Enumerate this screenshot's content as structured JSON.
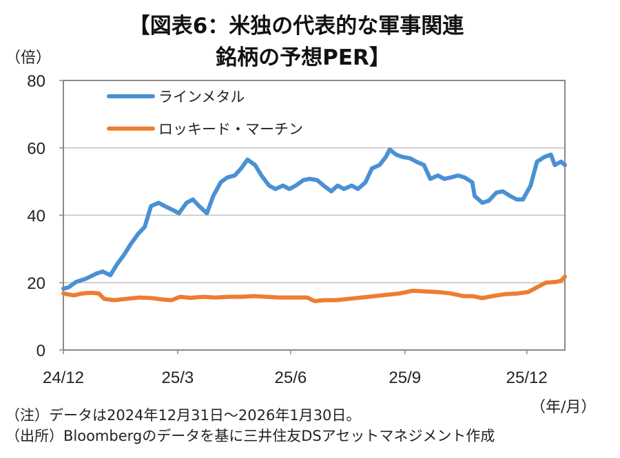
{
  "title_line1": "【図表6：米独の代表的な軍事関連",
  "title_line2": "銘柄の予想PER】",
  "y_unit": "（倍）",
  "x_unit": "（年/月）",
  "note": "（注）データは2024年12月31日～2026年1月30日。",
  "source": "（出所）Bloombergのデータを基に三井住友DSアセットマネジメント作成",
  "chart_data": {
    "type": "line",
    "title": "米独の代表的な軍事関連銘柄の予想PER",
    "xlabel": "年/月",
    "ylabel": "倍",
    "ylim": [
      0,
      80
    ],
    "xlim_days": [
      0,
      395
    ],
    "y_ticks": [
      0,
      20,
      40,
      60,
      80
    ],
    "x_ticks": [
      {
        "label": "24/12",
        "day": 0
      },
      {
        "label": "25/3",
        "day": 90
      },
      {
        "label": "25/6",
        "day": 179
      },
      {
        "label": "25/9",
        "day": 269
      },
      {
        "label": "25/12",
        "day": 365
      }
    ],
    "grid": true,
    "legend": "top-left",
    "series": [
      {
        "name": "ラインメタル",
        "color": "#4a90d4",
        "points": [
          [
            0,
            18.2
          ],
          [
            4,
            18.6
          ],
          [
            10,
            20.2
          ],
          [
            18,
            21.2
          ],
          [
            26,
            22.7
          ],
          [
            31,
            23.3
          ],
          [
            37,
            22.2
          ],
          [
            42,
            25.3
          ],
          [
            48,
            28.4
          ],
          [
            53,
            31.4
          ],
          [
            59,
            34.5
          ],
          [
            64,
            36.5
          ],
          [
            69,
            42.7
          ],
          [
            75,
            43.7
          ],
          [
            80,
            42.7
          ],
          [
            86,
            41.6
          ],
          [
            91,
            40.6
          ],
          [
            97,
            43.7
          ],
          [
            102,
            44.7
          ],
          [
            107,
            42.7
          ],
          [
            113,
            40.6
          ],
          [
            118,
            45.7
          ],
          [
            124,
            49.8
          ],
          [
            129,
            51.2
          ],
          [
            135,
            51.8
          ],
          [
            140,
            53.9
          ],
          [
            145,
            56.5
          ],
          [
            151,
            54.9
          ],
          [
            156,
            51.8
          ],
          [
            162,
            48.8
          ],
          [
            167,
            47.8
          ],
          [
            173,
            48.8
          ],
          [
            178,
            47.8
          ],
          [
            183,
            48.8
          ],
          [
            189,
            50.4
          ],
          [
            194,
            50.8
          ],
          [
            200,
            50.4
          ],
          [
            205,
            48.8
          ],
          [
            211,
            47.1
          ],
          [
            216,
            48.8
          ],
          [
            221,
            47.8
          ],
          [
            227,
            48.8
          ],
          [
            232,
            47.8
          ],
          [
            238,
            49.8
          ],
          [
            243,
            53.9
          ],
          [
            249,
            54.9
          ],
          [
            254,
            57.3
          ],
          [
            257,
            59.5
          ],
          [
            262,
            58
          ],
          [
            267,
            57.3
          ],
          [
            273,
            56.9
          ],
          [
            278,
            55.9
          ],
          [
            284,
            54.9
          ],
          [
            289,
            50.8
          ],
          [
            295,
            51.8
          ],
          [
            300,
            50.8
          ],
          [
            305,
            51.2
          ],
          [
            311,
            51.8
          ],
          [
            316,
            51.2
          ],
          [
            322,
            49.8
          ],
          [
            324,
            45.7
          ],
          [
            330,
            43.7
          ],
          [
            335,
            44.3
          ],
          [
            341,
            46.7
          ],
          [
            346,
            47.1
          ],
          [
            352,
            45.7
          ],
          [
            357,
            44.7
          ],
          [
            362,
            44.7
          ],
          [
            368,
            48.8
          ],
          [
            373,
            55.9
          ],
          [
            379,
            57.3
          ],
          [
            384,
            58
          ],
          [
            387,
            54.9
          ],
          [
            392,
            55.9
          ],
          [
            395,
            54.9
          ]
        ]
      },
      {
        "name": "ロッキード・マーチン",
        "color": "#ed7d31",
        "points": [
          [
            0,
            16.8
          ],
          [
            8,
            16.2
          ],
          [
            15,
            16.8
          ],
          [
            22,
            17
          ],
          [
            28,
            16.8
          ],
          [
            32,
            15.2
          ],
          [
            40,
            14.8
          ],
          [
            50,
            15.2
          ],
          [
            60,
            15.6
          ],
          [
            70,
            15.4
          ],
          [
            78,
            15
          ],
          [
            85,
            14.8
          ],
          [
            92,
            15.8
          ],
          [
            100,
            15.5
          ],
          [
            110,
            15.8
          ],
          [
            120,
            15.6
          ],
          [
            130,
            15.8
          ],
          [
            140,
            15.8
          ],
          [
            150,
            16
          ],
          [
            160,
            15.8
          ],
          [
            170,
            15.6
          ],
          [
            180,
            15.6
          ],
          [
            192,
            15.6
          ],
          [
            198,
            14.5
          ],
          [
            205,
            14.8
          ],
          [
            215,
            14.8
          ],
          [
            225,
            15.2
          ],
          [
            235,
            15.6
          ],
          [
            245,
            16
          ],
          [
            255,
            16.4
          ],
          [
            265,
            16.8
          ],
          [
            275,
            17.6
          ],
          [
            285,
            17.4
          ],
          [
            295,
            17.2
          ],
          [
            305,
            16.8
          ],
          [
            315,
            16
          ],
          [
            322,
            16
          ],
          [
            330,
            15.4
          ],
          [
            338,
            16
          ],
          [
            348,
            16.6
          ],
          [
            358,
            16.8
          ],
          [
            366,
            17.2
          ],
          [
            372,
            18.4
          ],
          [
            380,
            20
          ],
          [
            388,
            20.2
          ],
          [
            392,
            20.6
          ],
          [
            395,
            21.8
          ]
        ]
      }
    ]
  }
}
